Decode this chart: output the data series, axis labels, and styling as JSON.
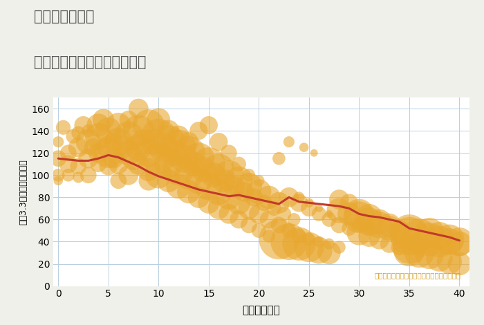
{
  "title_line1": "千葉県本千葉駅",
  "title_line2": "築年数別中古マンション価格",
  "xlabel": "築年数（年）",
  "ylabel": "坪（3.3㎡）単価（万円）",
  "annotation": "円の大きさは、取引のあった物件面積を示す",
  "bg_color": "#f0f0eb",
  "plot_bg_color": "#ffffff",
  "grid_color": "#b8cfe0",
  "bubble_color": "#e8a830",
  "bubble_alpha": 0.6,
  "line_color": "#c0392b",
  "line_width": 2.2,
  "xlim": [
    -0.5,
    41
  ],
  "ylim": [
    0,
    170
  ],
  "xticks": [
    0,
    5,
    10,
    15,
    20,
    25,
    30,
    35,
    40
  ],
  "yticks": [
    0,
    20,
    40,
    60,
    80,
    100,
    120,
    140,
    160
  ],
  "scatter_data": [
    [
      0,
      115,
      18
    ],
    [
      0,
      100,
      14
    ],
    [
      0,
      130,
      12
    ],
    [
      0,
      95,
      10
    ],
    [
      0.5,
      143,
      16
    ],
    [
      1,
      110,
      20
    ],
    [
      1,
      120,
      18
    ],
    [
      1,
      100,
      14
    ],
    [
      1.5,
      135,
      16
    ],
    [
      2,
      125,
      22
    ],
    [
      2,
      108,
      18
    ],
    [
      2,
      138,
      15
    ],
    [
      2,
      98,
      12
    ],
    [
      2.5,
      145,
      20
    ],
    [
      3,
      130,
      28
    ],
    [
      3,
      115,
      22
    ],
    [
      3,
      100,
      18
    ],
    [
      3,
      140,
      14
    ],
    [
      3.5,
      125,
      20
    ],
    [
      4,
      135,
      30
    ],
    [
      4,
      145,
      26
    ],
    [
      4,
      120,
      22
    ],
    [
      4,
      110,
      18
    ],
    [
      4.5,
      150,
      24
    ],
    [
      5,
      120,
      34
    ],
    [
      5,
      140,
      30
    ],
    [
      5,
      125,
      26
    ],
    [
      5,
      108,
      20
    ],
    [
      5.5,
      115,
      22
    ],
    [
      5.5,
      130,
      20
    ],
    [
      6,
      130,
      32
    ],
    [
      6,
      145,
      28
    ],
    [
      6,
      110,
      22
    ],
    [
      6,
      95,
      18
    ],
    [
      6.5,
      125,
      25
    ],
    [
      7,
      135,
      34
    ],
    [
      7,
      120,
      28
    ],
    [
      7,
      100,
      22
    ],
    [
      7,
      150,
      20
    ],
    [
      7.5,
      115,
      26
    ],
    [
      8,
      140,
      36
    ],
    [
      8,
      125,
      30
    ],
    [
      8,
      110,
      24
    ],
    [
      8,
      160,
      22
    ],
    [
      8.5,
      130,
      28
    ],
    [
      9,
      145,
      36
    ],
    [
      9,
      120,
      32
    ],
    [
      9,
      105,
      26
    ],
    [
      9,
      95,
      22
    ],
    [
      9.5,
      130,
      30
    ],
    [
      10,
      135,
      40
    ],
    [
      10,
      115,
      36
    ],
    [
      10,
      100,
      30
    ],
    [
      10,
      150,
      26
    ],
    [
      10.5,
      125,
      34
    ],
    [
      11,
      130,
      38
    ],
    [
      11,
      110,
      32
    ],
    [
      11,
      95,
      26
    ],
    [
      11,
      140,
      24
    ],
    [
      11.5,
      120,
      30
    ],
    [
      12,
      125,
      40
    ],
    [
      12,
      105,
      36
    ],
    [
      12,
      90,
      28
    ],
    [
      12,
      135,
      24
    ],
    [
      12.5,
      115,
      32
    ],
    [
      13,
      120,
      38
    ],
    [
      13,
      100,
      32
    ],
    [
      13,
      85,
      26
    ],
    [
      13,
      130,
      22
    ],
    [
      13.5,
      110,
      28
    ],
    [
      14,
      115,
      36
    ],
    [
      14,
      95,
      30
    ],
    [
      14,
      80,
      24
    ],
    [
      14,
      140,
      20
    ],
    [
      14.5,
      105,
      28
    ],
    [
      15,
      110,
      38
    ],
    [
      15,
      90,
      32
    ],
    [
      15,
      75,
      24
    ],
    [
      15,
      145,
      20
    ],
    [
      15.5,
      100,
      28
    ],
    [
      16,
      105,
      36
    ],
    [
      16,
      85,
      30
    ],
    [
      16,
      70,
      24
    ],
    [
      16,
      130,
      20
    ],
    [
      16.5,
      95,
      26
    ],
    [
      17,
      100,
      34
    ],
    [
      17,
      80,
      28
    ],
    [
      17,
      65,
      22
    ],
    [
      17,
      120,
      18
    ],
    [
      17.5,
      90,
      24
    ],
    [
      18,
      95,
      32
    ],
    [
      18,
      75,
      26
    ],
    [
      18,
      60,
      20
    ],
    [
      18,
      110,
      16
    ],
    [
      18.5,
      85,
      22
    ],
    [
      19,
      90,
      30
    ],
    [
      19,
      70,
      24
    ],
    [
      19,
      55,
      18
    ],
    [
      19,
      100,
      14
    ],
    [
      19.5,
      80,
      20
    ],
    [
      20,
      85,
      28
    ],
    [
      20,
      65,
      22
    ],
    [
      20,
      50,
      16
    ],
    [
      20,
      95,
      12
    ],
    [
      20.5,
      75,
      18
    ],
    [
      21,
      80,
      26
    ],
    [
      21,
      60,
      20
    ],
    [
      21,
      45,
      14
    ],
    [
      21.5,
      70,
      16
    ],
    [
      22,
      75,
      24
    ],
    [
      22,
      55,
      18
    ],
    [
      22,
      115,
      14
    ],
    [
      22,
      42,
      46
    ],
    [
      22.5,
      65,
      16
    ],
    [
      23,
      80,
      22
    ],
    [
      23,
      50,
      16
    ],
    [
      23,
      130,
      12
    ],
    [
      23,
      40,
      42
    ],
    [
      23.5,
      60,
      14
    ],
    [
      24,
      75,
      20
    ],
    [
      24,
      45,
      16
    ],
    [
      24,
      80,
      12
    ],
    [
      24,
      38,
      38
    ],
    [
      24.5,
      125,
      10
    ],
    [
      25,
      70,
      18
    ],
    [
      25,
      42,
      14
    ],
    [
      25,
      75,
      10
    ],
    [
      25,
      35,
      34
    ],
    [
      25.5,
      120,
      8
    ],
    [
      26,
      65,
      16
    ],
    [
      26,
      40,
      12
    ],
    [
      26,
      70,
      8
    ],
    [
      26,
      32,
      30
    ],
    [
      27,
      60,
      16
    ],
    [
      27,
      38,
      12
    ],
    [
      27,
      65,
      8
    ],
    [
      27,
      30,
      26
    ],
    [
      28,
      78,
      22
    ],
    [
      28,
      55,
      18
    ],
    [
      28,
      35,
      14
    ],
    [
      28,
      68,
      28
    ],
    [
      29,
      75,
      20
    ],
    [
      29,
      52,
      16
    ],
    [
      29,
      65,
      26
    ],
    [
      30,
      65,
      34
    ],
    [
      30,
      48,
      28
    ],
    [
      30,
      55,
      16
    ],
    [
      30,
      62,
      36
    ],
    [
      31,
      62,
      30
    ],
    [
      31,
      45,
      24
    ],
    [
      31,
      52,
      14
    ],
    [
      31,
      58,
      32
    ],
    [
      32,
      58,
      28
    ],
    [
      32,
      42,
      22
    ],
    [
      32,
      55,
      30
    ],
    [
      33,
      55,
      26
    ],
    [
      33,
      38,
      20
    ],
    [
      33,
      52,
      28
    ],
    [
      34,
      50,
      24
    ],
    [
      34,
      35,
      18
    ],
    [
      34,
      48,
      26
    ],
    [
      35,
      48,
      42
    ],
    [
      35,
      32,
      36
    ],
    [
      35,
      38,
      22
    ],
    [
      35,
      45,
      44
    ],
    [
      35,
      35,
      38
    ],
    [
      36,
      45,
      40
    ],
    [
      36,
      30,
      34
    ],
    [
      36,
      35,
      20
    ],
    [
      37,
      42,
      38
    ],
    [
      37,
      28,
      32
    ],
    [
      37,
      48,
      34
    ],
    [
      38,
      40,
      36
    ],
    [
      38,
      25,
      30
    ],
    [
      38,
      45,
      32
    ],
    [
      39,
      42,
      34
    ],
    [
      39,
      22,
      28
    ],
    [
      39,
      40,
      30
    ],
    [
      40,
      40,
      32
    ],
    [
      40,
      20,
      26
    ],
    [
      40,
      38,
      28
    ]
  ],
  "trend_line": [
    [
      0,
      115
    ],
    [
      1,
      114
    ],
    [
      2,
      113
    ],
    [
      3,
      113
    ],
    [
      4,
      115
    ],
    [
      5,
      118
    ],
    [
      6,
      116
    ],
    [
      7,
      112
    ],
    [
      8,
      108
    ],
    [
      9,
      103
    ],
    [
      10,
      99
    ],
    [
      11,
      96
    ],
    [
      12,
      93
    ],
    [
      13,
      90
    ],
    [
      14,
      87
    ],
    [
      15,
      85
    ],
    [
      16,
      83
    ],
    [
      17,
      81
    ],
    [
      18,
      82
    ],
    [
      19,
      80
    ],
    [
      20,
      78
    ],
    [
      21,
      76
    ],
    [
      22,
      74
    ],
    [
      23,
      80
    ],
    [
      24,
      76
    ],
    [
      25,
      75
    ],
    [
      26,
      74
    ],
    [
      27,
      73
    ],
    [
      28,
      72
    ],
    [
      29,
      70
    ],
    [
      30,
      65
    ],
    [
      31,
      63
    ],
    [
      32,
      62
    ],
    [
      33,
      60
    ],
    [
      34,
      58
    ],
    [
      35,
      52
    ],
    [
      36,
      50
    ],
    [
      37,
      48
    ],
    [
      38,
      46
    ],
    [
      39,
      44
    ],
    [
      40,
      41
    ]
  ]
}
